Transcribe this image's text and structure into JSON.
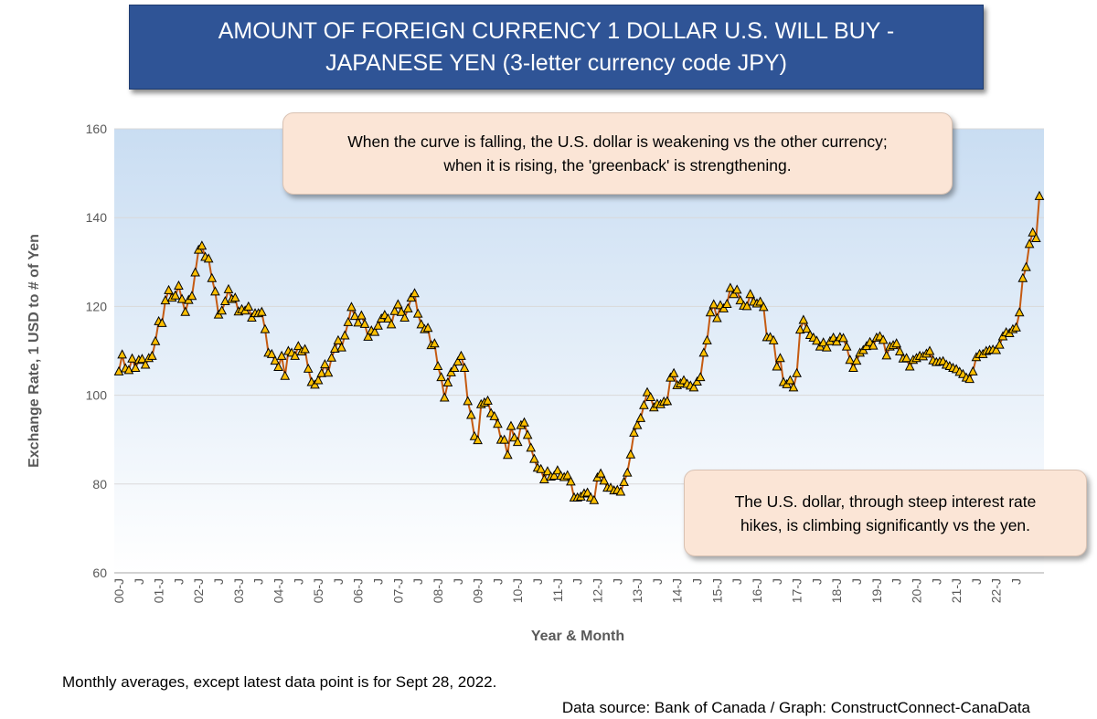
{
  "title": {
    "line1": "AMOUNT OF FOREIGN CURRENCY 1 DOLLAR U.S. WILL BUY -",
    "line2": "JAPANESE YEN (3-letter currency code JPY)"
  },
  "annotations": {
    "top_line1": "When the curve is falling, the U.S. dollar is weakening vs the other currency;",
    "top_line2": "when it is rising, the 'greenback' is strengthening.",
    "bottom_line1": "The U.S. dollar, through steep interest rate",
    "bottom_line2": "hikes, is climbing significantly vs the yen."
  },
  "footnote": "Monthly averages, except latest data point is for Sept 28, 2022.",
  "source": "Data source: Bank of Canada / Graph: ConstructConnect-CanaData",
  "colors": {
    "line": "#c55a11",
    "marker_fill": "#ffc000",
    "marker_stroke": "#000000",
    "title_bg": "#2f5496",
    "callout_bg": "#fbe5d6",
    "plot_bg_top": "#c9ddf2"
  },
  "chart_data": {
    "type": "line",
    "xlabel": "Year & Month",
    "ylabel": "Exchange Rate, 1 USD to # of Yen",
    "ylim": [
      60,
      160
    ],
    "yticks": [
      60,
      80,
      100,
      120,
      140,
      160
    ],
    "grid": true,
    "x_tick_labels": [
      "00-J",
      "J",
      "01-J",
      "J",
      "02-J",
      "J",
      "03-J",
      "J",
      "04-J",
      "J",
      "05-J",
      "J",
      "06-J",
      "J",
      "07-J",
      "J",
      "08-J",
      "J",
      "09-J",
      "J",
      "10-J",
      "J",
      "11-J",
      "J",
      "12-J",
      "J",
      "13-J",
      "J",
      "14-J",
      "J",
      "15-J",
      "J",
      "16-J",
      "J",
      "17-J",
      "J",
      "18-J",
      "J",
      "19-J",
      "J",
      "20-J",
      "J",
      "21-J",
      "J",
      "22-J",
      "J"
    ],
    "x_start": "2000-01",
    "x_end": "2022-09",
    "frequency": "monthly",
    "series": [
      {
        "values": [
          105.3,
          109.1,
          106.0,
          105.6,
          108.2,
          106.1,
          107.9,
          108.1,
          106.8,
          108.3,
          108.8,
          112.1,
          116.6,
          116.2,
          121.3,
          123.6,
          121.9,
          122.4,
          124.6,
          121.6,
          118.7,
          121.4,
          122.3,
          127.6,
          132.7,
          133.6,
          131.1,
          130.7,
          126.3,
          123.3,
          118.1,
          119.0,
          121.1,
          123.8,
          121.6,
          121.9,
          118.8,
          119.3,
          119.0,
          119.9,
          117.4,
          118.4,
          118.4,
          118.7,
          114.8,
          109.5,
          109.2,
          107.7,
          106.3,
          108.8,
          104.3,
          109.9,
          109.5,
          108.8,
          111.0,
          109.8,
          110.3,
          105.9,
          102.9,
          102.3,
          103.3,
          104.9,
          106.9,
          105.0,
          108.4,
          110.4,
          112.3,
          110.7,
          113.4,
          116.4,
          119.8,
          117.8,
          116.3,
          117.9,
          116.0,
          113.1,
          114.5,
          114.2,
          115.6,
          117.2,
          118.0,
          117.2,
          115.9,
          118.9,
          120.4,
          118.7,
          117.4,
          119.5,
          121.9,
          122.9,
          118.3,
          115.9,
          114.8,
          115.1,
          111.2,
          111.6,
          106.5,
          104.0,
          99.4,
          102.8,
          105.1,
          106.1,
          107.5,
          108.8,
          106.1,
          98.6,
          95.5,
          90.7,
          89.8,
          97.9,
          98.3,
          98.7,
          95.9,
          95.2,
          93.5,
          89.9,
          89.9,
          86.5,
          93.0,
          90.4,
          89.4,
          93.2,
          93.8,
          91.0,
          88.1,
          85.6,
          83.6,
          83.3,
          81.0,
          82.8,
          81.6,
          81.8,
          83.0,
          81.8,
          81.5,
          81.9,
          80.5,
          76.9,
          76.9,
          77.1,
          77.8,
          78.0,
          76.9,
          76.3,
          81.4,
          82.3,
          80.7,
          79.1,
          79.1,
          78.5,
          78.6,
          78.2,
          80.4,
          82.5,
          86.6,
          91.5,
          93.2,
          94.8,
          97.7,
          100.6,
          99.5,
          97.2,
          98.0,
          97.9,
          98.5,
          98.6,
          103.9,
          104.9,
          102.2,
          102.6,
          103.3,
          102.5,
          102.1,
          101.7,
          103.0,
          104.0,
          109.5,
          112.3,
          118.6,
          120.4,
          117.3,
          120.2,
          119.5,
          120.5,
          124.1,
          122.7,
          123.7,
          121.3,
          120.1,
          120.0,
          122.7,
          121.0,
          120.6,
          121.0,
          119.8,
          113.0,
          113.0,
          112.3,
          106.4,
          108.3,
          102.9,
          102.4,
          103.3,
          101.7,
          104.9,
          114.7,
          116.9,
          114.9,
          113.5,
          112.9,
          112.2,
          110.9,
          111.8,
          110.7,
          112.1,
          112.9,
          112.0,
          113.0,
          112.8,
          110.9,
          107.9,
          106.1,
          107.7,
          109.5,
          110.1,
          111.0,
          111.9,
          111.1,
          112.9,
          113.2,
          112.4,
          108.9,
          110.9,
          111.2,
          111.6,
          109.8,
          108.2,
          108.3,
          106.4,
          107.9,
          108.3,
          108.8,
          108.7,
          109.3,
          109.9,
          107.8,
          107.4,
          107.5,
          107.6,
          106.8,
          106.5,
          106.1,
          105.8,
          105.2,
          104.7,
          103.9,
          103.6,
          105.3,
          108.5,
          109.2,
          109.2,
          109.9,
          110.1,
          110.2,
          110.1,
          111.3,
          113.2,
          114.1,
          113.9,
          114.8,
          115.2,
          118.6,
          126.3,
          128.8,
          134.0,
          136.6,
          135.3,
          144.8
        ]
      }
    ]
  }
}
